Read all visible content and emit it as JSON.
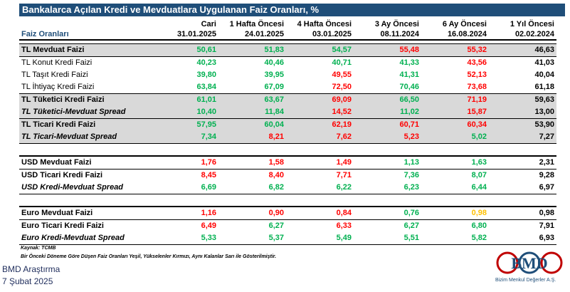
{
  "title": "Bankalarca Açılan Kredi ve Mevduatlara Uygulanan Faiz Oranları, %",
  "header": {
    "row_label": "Faiz Oranları",
    "periods": [
      "Cari",
      "1 Hafta Öncesi",
      "4 Hafta Öncesi",
      "3 Ay Öncesi",
      "6 Ay Öncesi",
      "1 Yıl Öncesi"
    ],
    "dates": [
      "31.01.2025",
      "24.01.2025",
      "03.01.2025",
      "08.11.2024",
      "16.08.2024",
      "02.02.2024"
    ]
  },
  "colors": {
    "green": "#00b050",
    "red": "#ff0000",
    "yellow": "#ffc000",
    "black": "#000000",
    "grey_row": "#d9d9d9",
    "title_bg": "#1f4e79"
  },
  "rows": [
    {
      "label": "TL Mevduat Faizi",
      "values": [
        "50,61",
        "51,83",
        "54,57",
        "55,48",
        "55,32",
        "46,63"
      ],
      "colors": [
        "g",
        "g",
        "g",
        "r",
        "r",
        "k"
      ]
    },
    {
      "label": "TL Konut Kredi Faizi",
      "values": [
        "40,23",
        "40,46",
        "40,71",
        "41,33",
        "43,56",
        "41,03"
      ],
      "colors": [
        "g",
        "g",
        "g",
        "g",
        "r",
        "k"
      ]
    },
    {
      "label": "TL Taşıt Kredi Faizi",
      "values": [
        "39,80",
        "39,95",
        "49,55",
        "41,31",
        "52,13",
        "40,04"
      ],
      "colors": [
        "g",
        "g",
        "r",
        "g",
        "r",
        "k"
      ]
    },
    {
      "label": "TL İhtiyaç Kredi Faizi",
      "values": [
        "63,84",
        "67,09",
        "72,50",
        "70,46",
        "73,68",
        "61,18"
      ],
      "colors": [
        "g",
        "g",
        "r",
        "g",
        "r",
        "k"
      ]
    },
    {
      "label": "TL Tüketici Kredi Faizi",
      "values": [
        "61,01",
        "63,67",
        "69,09",
        "66,50",
        "71,19",
        "59,63"
      ],
      "colors": [
        "g",
        "g",
        "r",
        "g",
        "r",
        "k"
      ]
    },
    {
      "label": "TL Tüketici-Mevduat Spread",
      "values": [
        "10,40",
        "11,84",
        "14,52",
        "11,02",
        "15,87",
        "13,00"
      ],
      "colors": [
        "g",
        "g",
        "r",
        "g",
        "r",
        "k"
      ]
    },
    {
      "label": "TL Ticari Kredi Faizi",
      "values": [
        "57,95",
        "60,04",
        "62,19",
        "60,71",
        "60,34",
        "53,90"
      ],
      "colors": [
        "g",
        "g",
        "r",
        "r",
        "r",
        "k"
      ]
    },
    {
      "label": "TL Ticari-Mevduat Spread",
      "values": [
        "7,34",
        "8,21",
        "7,62",
        "5,23",
        "5,02",
        "7,27"
      ],
      "colors": [
        "g",
        "r",
        "r",
        "r",
        "g",
        "k"
      ]
    },
    {
      "label": "USD Mevduat Faizi",
      "values": [
        "1,76",
        "1,58",
        "1,49",
        "1,13",
        "1,63",
        "2,31"
      ],
      "colors": [
        "r",
        "r",
        "r",
        "g",
        "g",
        "k"
      ]
    },
    {
      "label": "USD Ticari Kredi Faizi",
      "values": [
        "8,45",
        "8,40",
        "7,71",
        "7,36",
        "8,07",
        "9,28"
      ],
      "colors": [
        "r",
        "r",
        "r",
        "g",
        "g",
        "k"
      ]
    },
    {
      "label": "USD Kredi-Mevduat Spread",
      "values": [
        "6,69",
        "6,82",
        "6,22",
        "6,23",
        "6,44",
        "6,97"
      ],
      "colors": [
        "g",
        "g",
        "g",
        "g",
        "g",
        "k"
      ]
    },
    {
      "label": "Euro Mevduat Faizi",
      "values": [
        "1,16",
        "0,90",
        "0,84",
        "0,76",
        "0,98",
        "0,98"
      ],
      "colors": [
        "r",
        "r",
        "r",
        "g",
        "y",
        "k"
      ]
    },
    {
      "label": "Euro Ticari Kredi Faizi",
      "values": [
        "6,49",
        "6,27",
        "6,33",
        "6,27",
        "6,80",
        "7,91"
      ],
      "colors": [
        "r",
        "g",
        "r",
        "g",
        "g",
        "k"
      ]
    },
    {
      "label": "Euro Kredi-Mevduat Spread",
      "values": [
        "5,33",
        "5,37",
        "5,49",
        "5,51",
        "5,82",
        "6,93"
      ],
      "colors": [
        "g",
        "g",
        "g",
        "g",
        "g",
        "k"
      ]
    }
  ],
  "source": "Kaynak: TCMB",
  "note": "Bir Önceki Döneme Göre Düşen Faiz Oranları Yeşil, Yükselenler Kırmızı, Aynı Kalanlar Sarı ile Gösterilmiştir.",
  "footer": {
    "org": "BMD Araştırma",
    "date": "7 Şubat 2025"
  },
  "logo": {
    "text": "BMD",
    "caption": "Bizim Menkul Değerler A.Ş."
  }
}
